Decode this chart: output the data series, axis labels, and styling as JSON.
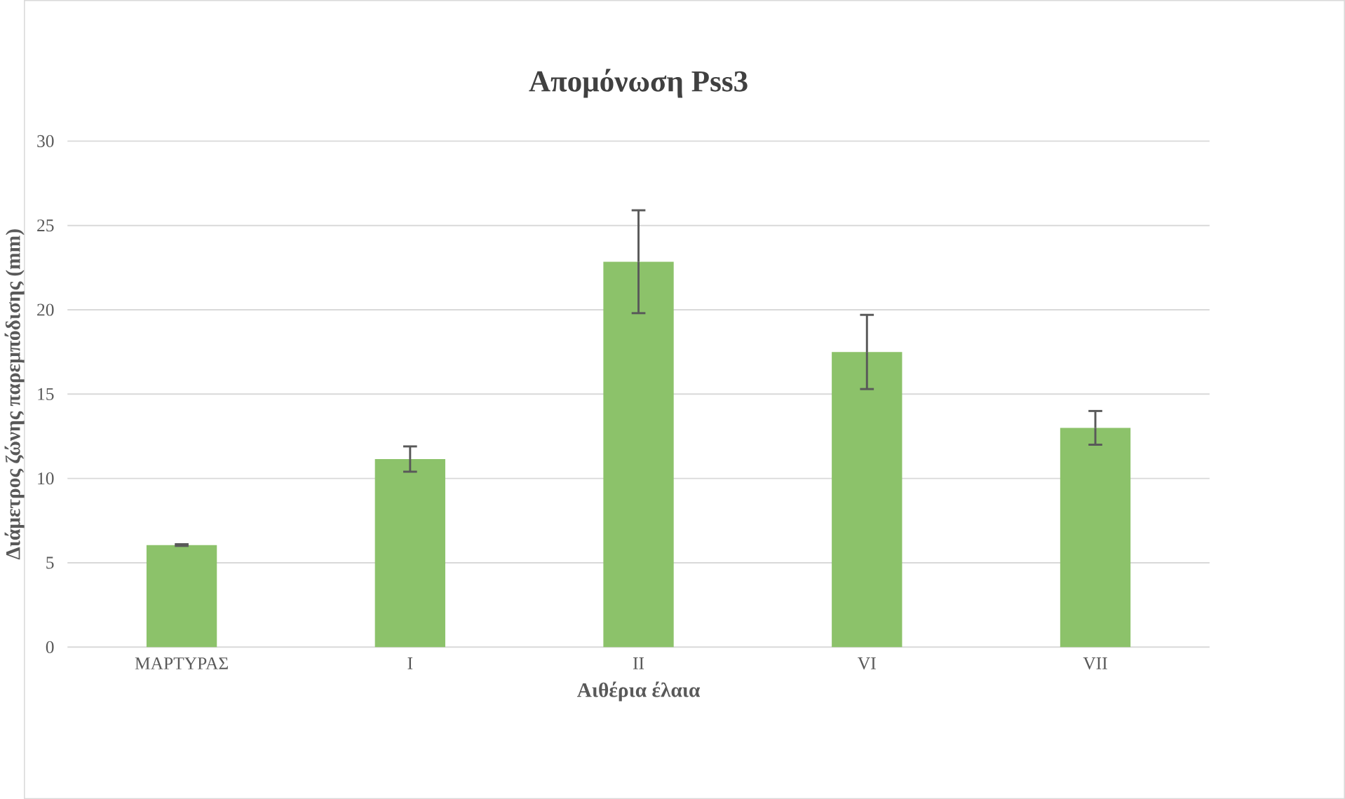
{
  "chart_data": {
    "type": "bar",
    "title": "Απομόνωση  Pss3",
    "xlabel": "Αιθέρια έλαια",
    "ylabel": "Διάμετρος ζώνης παρεμπόδισης (mm)",
    "categories": [
      "ΜΑΡΤΥΡΑΣ",
      "I",
      "II",
      "VI",
      "VII"
    ],
    "values": [
      6.05,
      11.15,
      22.85,
      17.5,
      13.0
    ],
    "errors": [
      0.05,
      0.75,
      3.05,
      2.2,
      1.0
    ],
    "color": "#8cc26a",
    "ylim": [
      0,
      30
    ],
    "yticks": [
      0,
      5,
      10,
      15,
      20,
      25,
      30
    ],
    "grid": "y"
  }
}
